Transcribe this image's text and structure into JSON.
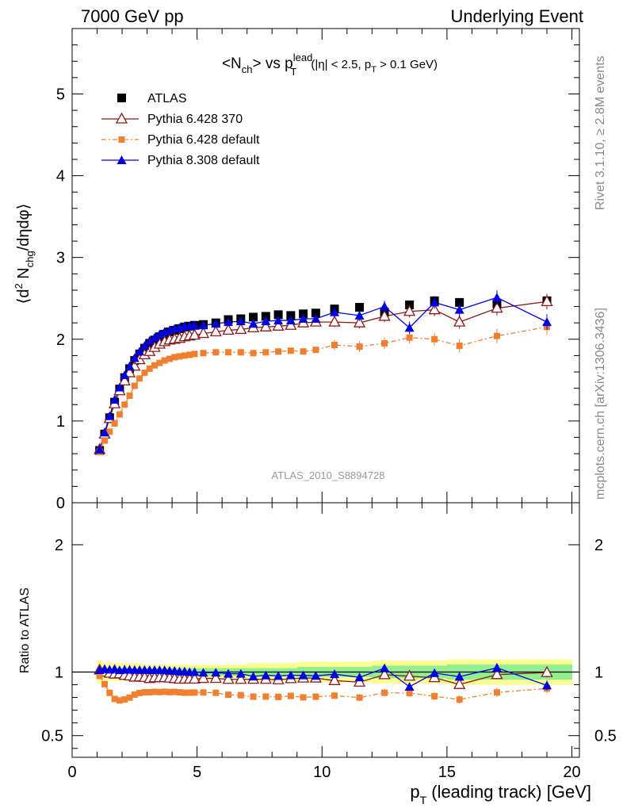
{
  "header": {
    "left": "7000 GeV pp",
    "right": "Underlying Event"
  },
  "side_labels": {
    "rivet": "Rivet 3.1.10, ≥ 2.8M events",
    "mcplots": "mcplots.cern.ch [arXiv:1306.3436]"
  },
  "watermark": "ATLAS_2010_S8894728",
  "chart_data": {
    "type": "scatter",
    "title": "<Nch> vs pT lead (|η| < 2.5, pT > 0.1 GeV)",
    "xlabel": "pT (leading track) [GeV]",
    "ylabel_main": "⟨d² Nchg/dηdφ⟩",
    "ylabel_ratio": "Ratio to ATLAS",
    "xlim": [
      0,
      20.3
    ],
    "ylim_main": [
      0,
      5.8
    ],
    "ylim_ratio": [
      0.33,
      2.33
    ],
    "x_ticks": [
      "0",
      "5",
      "10",
      "15",
      "20"
    ],
    "y_ticks_main": [
      "0",
      "1",
      "2",
      "3",
      "4",
      "5"
    ],
    "y_ticks_ratio": [
      "0.5",
      "1",
      "2"
    ],
    "legend_position": "top-left",
    "x": [
      1.1,
      1.3,
      1.5,
      1.7,
      1.9,
      2.1,
      2.3,
      2.5,
      2.7,
      2.9,
      3.1,
      3.3,
      3.5,
      3.7,
      3.9,
      4.1,
      4.3,
      4.5,
      4.7,
      4.9,
      5.25,
      5.75,
      6.25,
      6.75,
      7.25,
      7.75,
      8.25,
      8.75,
      9.25,
      9.75,
      10.5,
      11.5,
      12.5,
      13.5,
      14.5,
      15.5,
      17.0,
      19.0
    ],
    "series": [
      {
        "name": "ATLAS",
        "color": "#000000",
        "values": [
          0.64,
          0.84,
          1.04,
          1.23,
          1.39,
          1.53,
          1.64,
          1.74,
          1.82,
          1.89,
          1.95,
          1.99,
          2.03,
          2.06,
          2.09,
          2.11,
          2.13,
          2.15,
          2.16,
          2.17,
          2.18,
          2.2,
          2.24,
          2.25,
          2.27,
          2.28,
          2.3,
          2.29,
          2.31,
          2.32,
          2.37,
          2.39,
          2.33,
          2.42,
          2.47,
          2.45,
          2.43,
          2.47
        ]
      },
      {
        "name": "Pythia 6.428 370",
        "color": "#8b1a1a",
        "values": [
          0.65,
          0.84,
          1.03,
          1.21,
          1.37,
          1.49,
          1.59,
          1.67,
          1.75,
          1.81,
          1.85,
          1.9,
          1.94,
          1.97,
          1.99,
          2.0,
          2.01,
          2.03,
          2.04,
          2.05,
          2.07,
          2.09,
          2.11,
          2.12,
          2.14,
          2.15,
          2.16,
          2.17,
          2.2,
          2.21,
          2.21,
          2.2,
          2.28,
          2.34,
          2.36,
          2.21,
          2.38,
          2.46
        ]
      },
      {
        "name": "Pythia 6.428 default",
        "color": "#f08030",
        "values": [
          0.62,
          0.76,
          0.87,
          0.97,
          1.08,
          1.2,
          1.31,
          1.43,
          1.52,
          1.59,
          1.64,
          1.68,
          1.71,
          1.74,
          1.76,
          1.78,
          1.79,
          1.8,
          1.81,
          1.82,
          1.83,
          1.84,
          1.84,
          1.84,
          1.83,
          1.84,
          1.85,
          1.86,
          1.85,
          1.87,
          1.93,
          1.91,
          1.95,
          2.02,
          2.0,
          1.92,
          2.04,
          2.15
        ]
      },
      {
        "name": "Pythia 8.308 default",
        "color": "#0000e0",
        "values": [
          0.65,
          0.86,
          1.06,
          1.26,
          1.41,
          1.56,
          1.67,
          1.77,
          1.85,
          1.92,
          1.98,
          2.02,
          2.06,
          2.09,
          2.11,
          2.13,
          2.14,
          2.16,
          2.16,
          2.17,
          2.17,
          2.19,
          2.21,
          2.22,
          2.19,
          2.22,
          2.23,
          2.23,
          2.25,
          2.25,
          2.33,
          2.29,
          2.4,
          2.14,
          2.45,
          2.36,
          2.51,
          2.21
        ]
      }
    ],
    "ratio_band": {
      "inner_color": "#90f090",
      "outer_color": "#ffff90",
      "inner_halfwidth": [
        0.04,
        0.03,
        0.03,
        0.03,
        0.03,
        0.03,
        0.03,
        0.03,
        0.03,
        0.03,
        0.03,
        0.03,
        0.03,
        0.03,
        0.03,
        0.03,
        0.03,
        0.03,
        0.03,
        0.03,
        0.03,
        0.03,
        0.03,
        0.03,
        0.03,
        0.03,
        0.03,
        0.03,
        0.04,
        0.04,
        0.04,
        0.04,
        0.05,
        0.05,
        0.05,
        0.06,
        0.06,
        0.06
      ],
      "outer_halfwidth": [
        0.09,
        0.07,
        0.07,
        0.07,
        0.07,
        0.07,
        0.07,
        0.07,
        0.07,
        0.06,
        0.06,
        0.06,
        0.06,
        0.06,
        0.06,
        0.06,
        0.06,
        0.06,
        0.06,
        0.06,
        0.06,
        0.06,
        0.06,
        0.06,
        0.07,
        0.07,
        0.07,
        0.07,
        0.08,
        0.08,
        0.08,
        0.08,
        0.09,
        0.09,
        0.09,
        0.1,
        0.1,
        0.1
      ]
    }
  }
}
